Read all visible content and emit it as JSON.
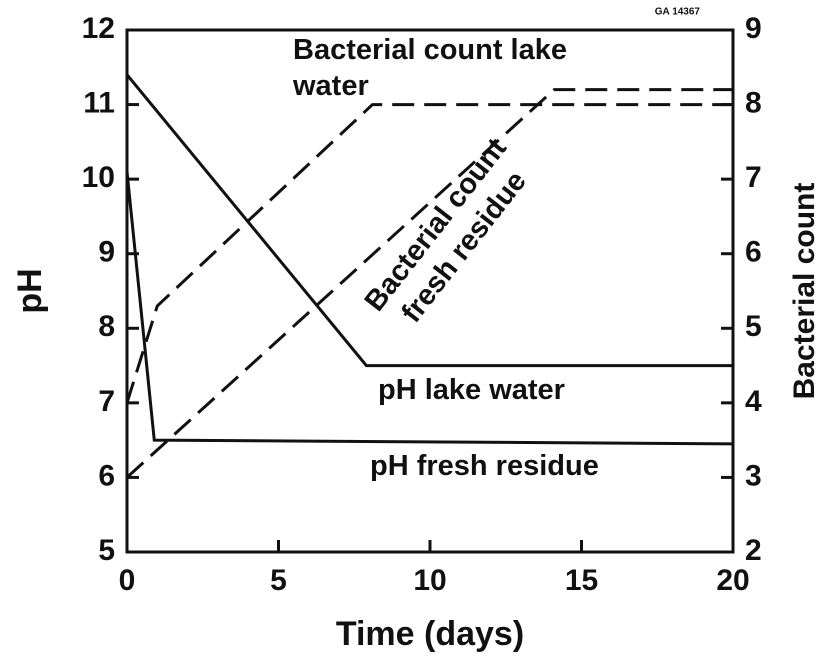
{
  "chart_data": {
    "type": "line",
    "code": "GA 14367",
    "x_label": "Time (days)",
    "y_label": "pH",
    "y2_label": "Bacterial count",
    "xlim": [
      0,
      20
    ],
    "xticks": [
      0,
      5,
      10,
      15,
      20
    ],
    "ylim": [
      5,
      12
    ],
    "yticks": [
      5,
      6,
      7,
      8,
      9,
      10,
      11,
      12
    ],
    "y2lim": [
      2,
      9
    ],
    "y2ticks": [
      2,
      3,
      4,
      5,
      6,
      7,
      8,
      9
    ],
    "color": "#111111",
    "series": [
      {
        "name": "pH lake water",
        "style": "solid",
        "x": [
          0,
          0.9,
          20
        ],
        "values": [
          10.1,
          6.5,
          6.45
        ]
      },
      {
        "name": "pH fresh residue",
        "style": "solid",
        "x": [
          0,
          7.9,
          20
        ],
        "values": [
          11.4,
          7.5,
          7.5
        ]
      },
      {
        "name": "Bacterial count lake water",
        "style": "dashed",
        "axis": "y2",
        "x": [
          0,
          1,
          8.1,
          20
        ],
        "values": [
          4.0,
          5.3,
          8.0,
          8.0
        ]
      },
      {
        "name": "Bacterial count fresh residue",
        "style": "dashed",
        "axis": "y2",
        "x": [
          0,
          14.1,
          20
        ],
        "values": [
          3.0,
          8.2,
          8.2
        ]
      }
    ]
  }
}
